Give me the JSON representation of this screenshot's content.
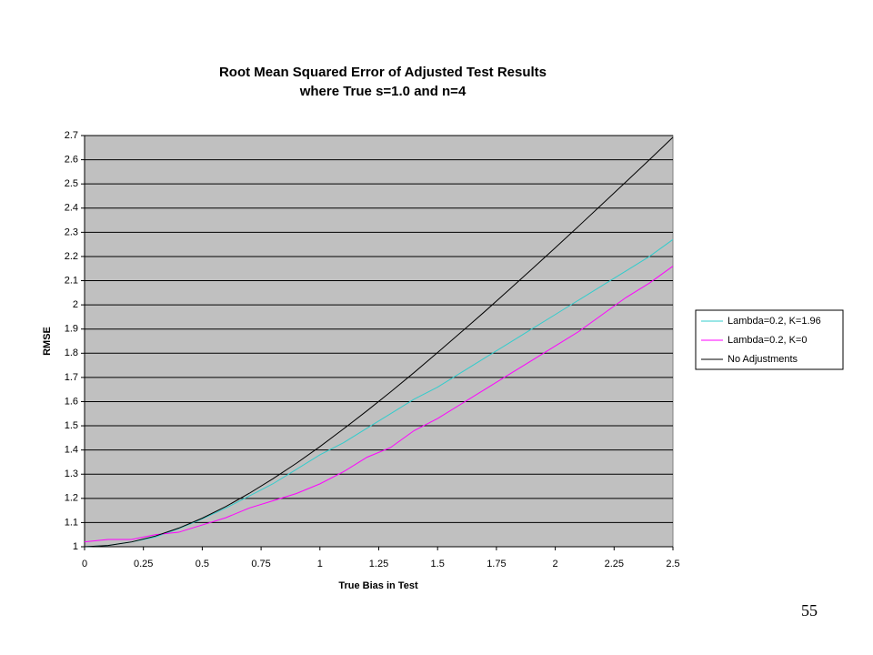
{
  "chart_data": {
    "type": "line",
    "title": "Root Mean Squared Error of Adjusted Test Results",
    "subtitle": "where True s=1.0 and n=4",
    "x_label": "True Bias in Test",
    "y_label": "RMSE",
    "x": [
      0,
      0.1,
      0.2,
      0.3,
      0.4,
      0.5,
      0.6,
      0.7,
      0.8,
      0.9,
      1.0,
      1.1,
      1.2,
      1.3,
      1.4,
      1.5,
      1.6,
      1.7,
      1.8,
      1.9,
      2.0,
      2.1,
      2.2,
      2.3,
      2.4,
      2.5
    ],
    "series": [
      {
        "name": "Lambda=0.2, K=1.96",
        "color": "#33cccc",
        "values": [
          1.0,
          1.005,
          1.02,
          1.04,
          1.075,
          1.115,
          1.16,
          1.21,
          1.26,
          1.32,
          1.38,
          1.43,
          1.49,
          1.55,
          1.61,
          1.66,
          1.72,
          1.78,
          1.84,
          1.9,
          1.96,
          2.02,
          2.08,
          2.14,
          2.2,
          2.27
        ]
      },
      {
        "name": "Lambda=0.2, K=0",
        "color": "#ff00ff",
        "values": [
          1.02,
          1.03,
          1.03,
          1.05,
          1.06,
          1.09,
          1.12,
          1.16,
          1.19,
          1.22,
          1.26,
          1.31,
          1.37,
          1.41,
          1.48,
          1.53,
          1.59,
          1.65,
          1.71,
          1.77,
          1.83,
          1.89,
          1.96,
          2.03,
          2.09,
          2.16
        ]
      },
      {
        "name": "No Adjustments",
        "color": "#000000",
        "values": [
          1.0,
          1.005,
          1.02,
          1.044,
          1.077,
          1.118,
          1.166,
          1.221,
          1.281,
          1.345,
          1.414,
          1.487,
          1.562,
          1.64,
          1.72,
          1.803,
          1.887,
          1.972,
          2.059,
          2.147,
          2.236,
          2.326,
          2.417,
          2.508,
          2.6,
          2.693
        ]
      }
    ],
    "xlim": [
      0,
      2.5
    ],
    "xticks": [
      0,
      0.25,
      0.5,
      0.75,
      1,
      1.25,
      1.5,
      1.75,
      2,
      2.25,
      2.5
    ],
    "ylim": [
      1,
      2.7
    ],
    "yticks": [
      1,
      1.1,
      1.2,
      1.3,
      1.4,
      1.5,
      1.6,
      1.7,
      1.8,
      1.9,
      2,
      2.1,
      2.2,
      2.3,
      2.4,
      2.5,
      2.6,
      2.7
    ],
    "grid": true,
    "legend": "right",
    "plot_background": "#c0c0c0"
  },
  "slide_number": 55
}
